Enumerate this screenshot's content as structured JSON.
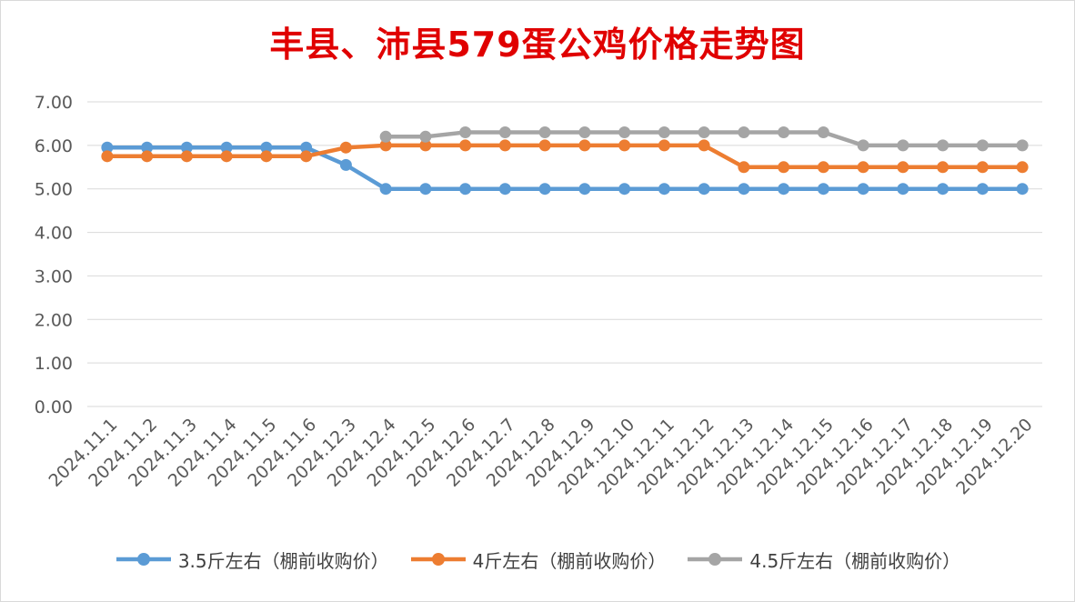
{
  "chart_data": {
    "type": "line",
    "title": "丰县、沛县579蛋公鸡价格走势图",
    "title_color": "#e00000",
    "xlabel": "",
    "ylabel": "",
    "ylim": [
      0,
      7
    ],
    "y_ticks": [
      "0.00",
      "1.00",
      "2.00",
      "3.00",
      "4.00",
      "5.00",
      "6.00",
      "7.00"
    ],
    "grid": "horizontal",
    "legend_position": "bottom",
    "categories": [
      "2024.11.1",
      "2024.11.2",
      "2024.11.3",
      "2024.11.4",
      "2024.11.5",
      "2024.11.6",
      "2024.12.3",
      "2024.12.4",
      "2024.12.5",
      "2024.12.6",
      "2024.12.7",
      "2024.12.8",
      "2024.12.9",
      "2024.12.10",
      "2024.12.11",
      "2024.12.12",
      "2024.12.13",
      "2024.12.14",
      "2024.12.15",
      "2024.12.16",
      "2024.12.17",
      "2024.12.18",
      "2024.12.19",
      "2024.12.20"
    ],
    "series": [
      {
        "name": "3.5斤左右（棚前收购价）",
        "color": "#5b9bd5",
        "values": [
          5.95,
          5.95,
          5.95,
          5.95,
          5.95,
          5.95,
          5.55,
          5.0,
          5.0,
          5.0,
          5.0,
          5.0,
          5.0,
          5.0,
          5.0,
          5.0,
          5.0,
          5.0,
          5.0,
          5.0,
          5.0,
          5.0,
          5.0,
          5.0
        ]
      },
      {
        "name": "4斤左右（棚前收购价）",
        "color": "#ed7d31",
        "values": [
          5.75,
          5.75,
          5.75,
          5.75,
          5.75,
          5.75,
          5.95,
          6.0,
          6.0,
          6.0,
          6.0,
          6.0,
          6.0,
          6.0,
          6.0,
          6.0,
          5.5,
          5.5,
          5.5,
          5.5,
          5.5,
          5.5,
          5.5,
          5.5
        ]
      },
      {
        "name": "4.5斤左右（棚前收购价）",
        "color": "#a5a5a5",
        "values": [
          null,
          null,
          null,
          null,
          null,
          null,
          null,
          6.2,
          6.2,
          6.3,
          6.3,
          6.3,
          6.3,
          6.3,
          6.3,
          6.3,
          6.3,
          6.3,
          6.3,
          6.0,
          6.0,
          6.0,
          6.0,
          6.0
        ]
      }
    ]
  }
}
